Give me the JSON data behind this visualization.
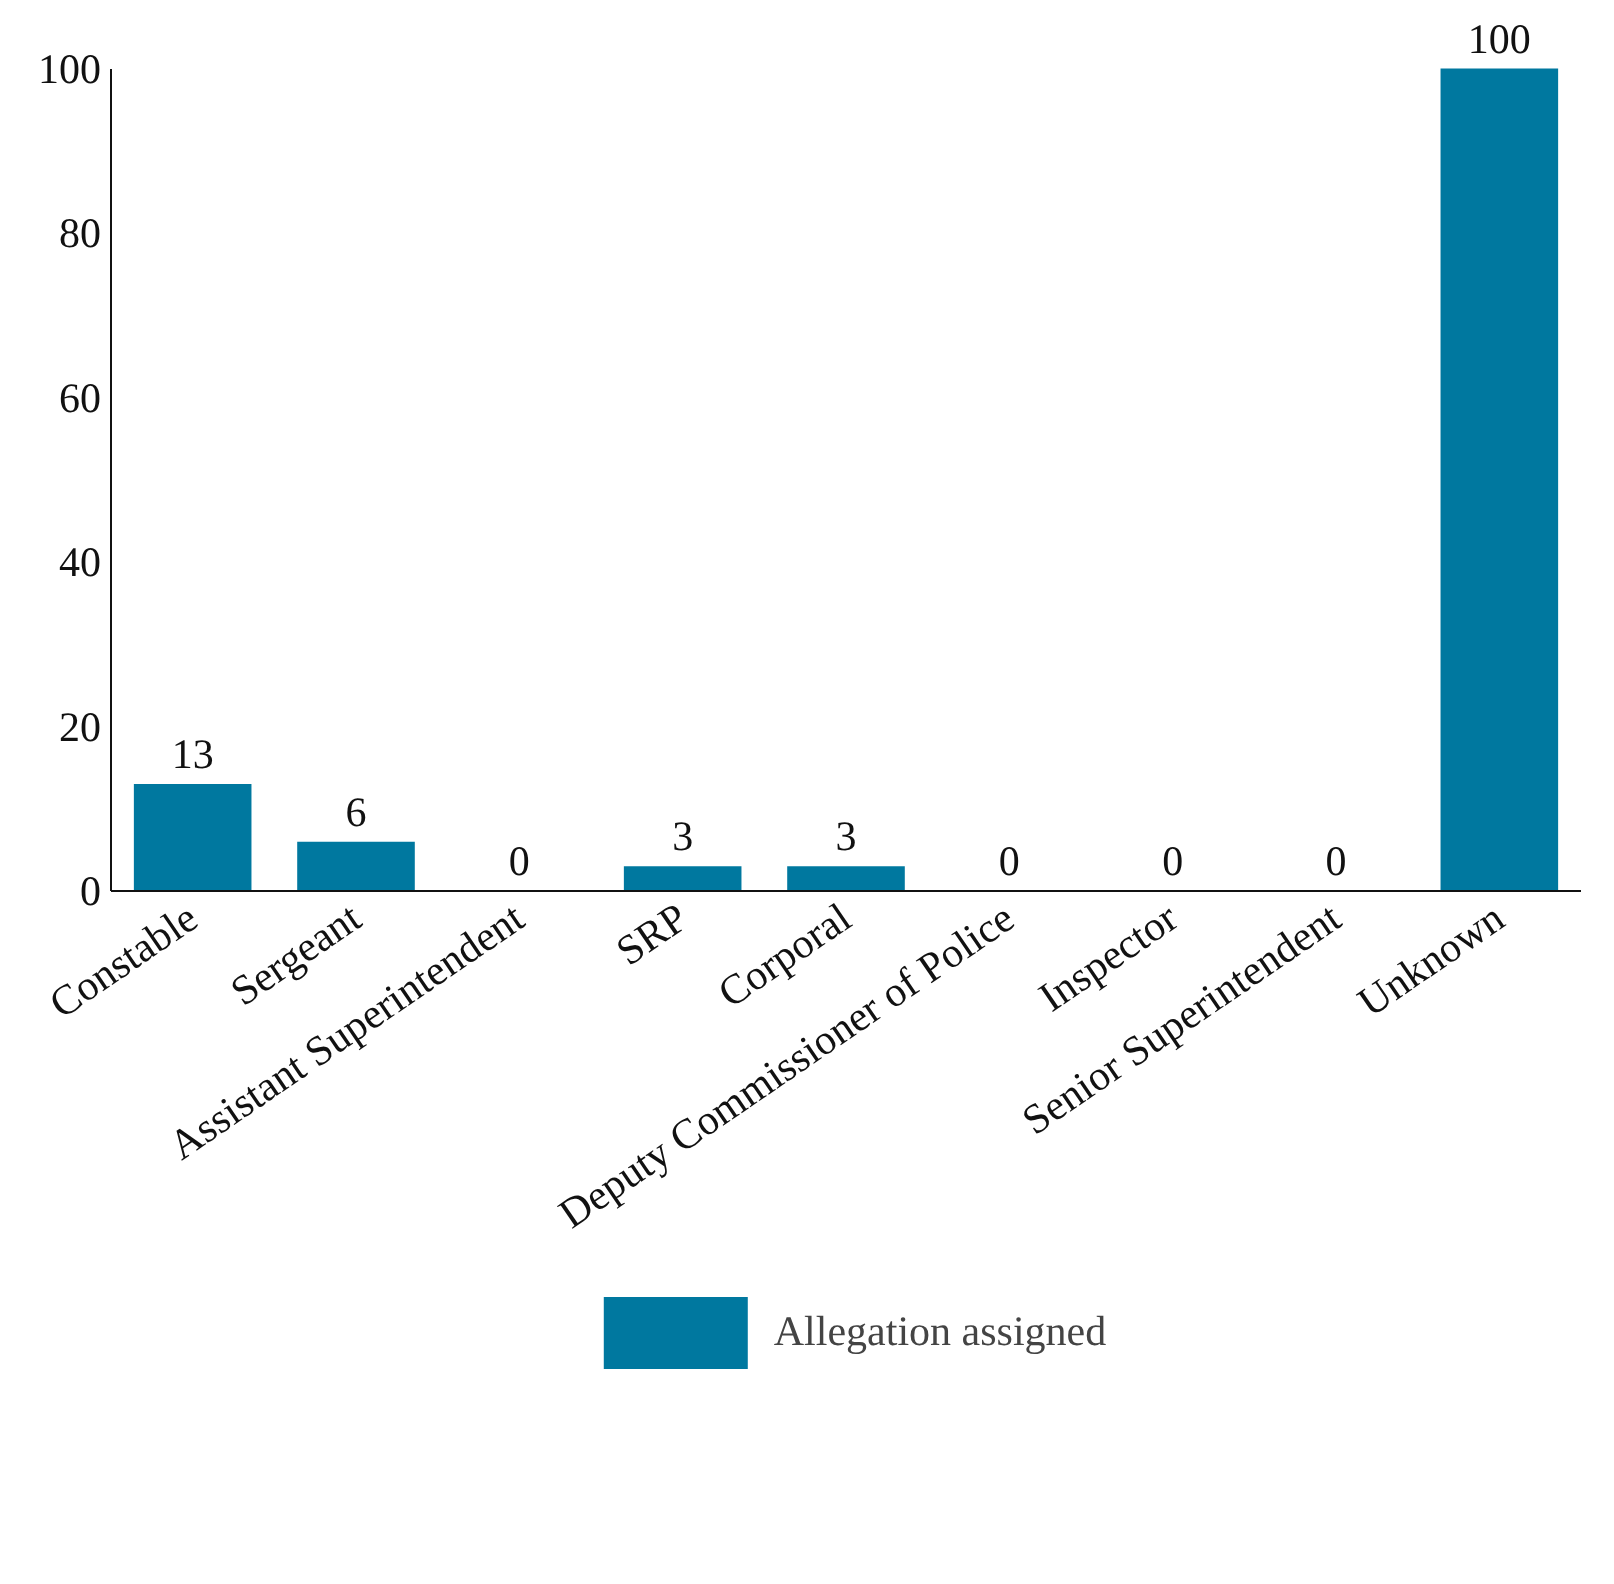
{
  "chart_data": {
    "type": "bar",
    "categories": [
      "Constable",
      "Sergeant",
      "Assistant Superintendent",
      "SRP",
      "Corporal",
      "Deputy Commissioner of Police",
      "Inspector",
      "Senior Superintendent",
      "Unknown"
    ],
    "series": [
      {
        "name": "Allegation assigned",
        "color": "#00789f",
        "values": [
          13,
          6,
          0,
          3,
          3,
          0,
          0,
          0,
          100
        ]
      }
    ],
    "ylim": [
      0,
      100
    ],
    "yticks": [
      0,
      20,
      40,
      60,
      80,
      100
    ],
    "data_labels": true,
    "grid": false,
    "legend": "bottom"
  }
}
